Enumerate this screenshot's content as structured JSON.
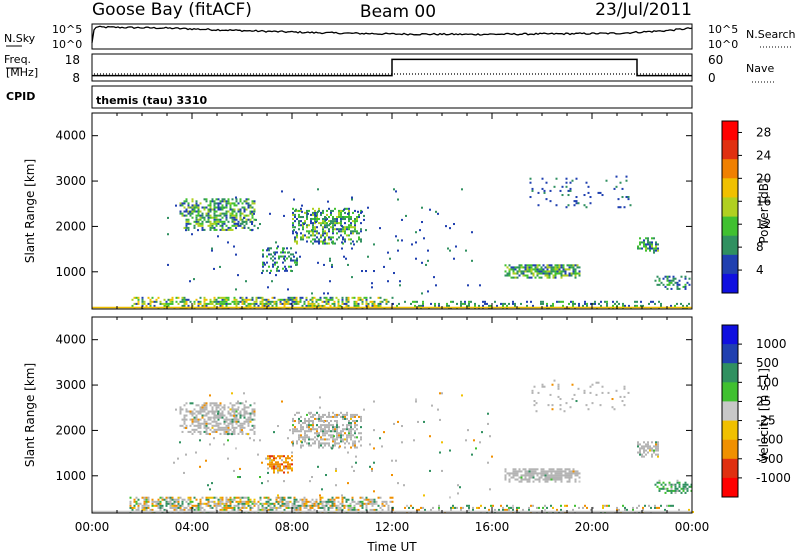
{
  "header": {
    "station": "Goose Bay (fitACF)",
    "beam": "Beam 00",
    "date": "23/Jul/2011"
  },
  "panels": {
    "nsky": {
      "label": "N.Sky",
      "tick_top": "10^5",
      "tick_bottom": "10^0",
      "right_label": "N.Search",
      "right_tick_top": "10^5",
      "right_tick_bottom": "10^0"
    },
    "freq": {
      "label_line1": "Freq.",
      "label_line2": "[MHz]",
      "tick_top": "18",
      "tick_bottom": "8",
      "right_label": "Nave",
      "right_tick_top": "60",
      "right_tick_bottom": "0"
    },
    "cpid": {
      "label": "CPID",
      "text": "themis (tau) 3310"
    }
  },
  "colors": {
    "power": [
      "#1010e0",
      "#2040b0",
      "#309060",
      "#40c030",
      "#b0d020",
      "#f0c000",
      "#f08000",
      "#e03010",
      "#ff0000"
    ],
    "velocity": [
      "#ff0000",
      "#e03010",
      "#f09000",
      "#f0c000",
      "#c8c8c8",
      "#40c030",
      "#309060",
      "#2040b0",
      "#1010e0"
    ],
    "ground_scatter": "#b4b4b4"
  },
  "chart_data": [
    {
      "type": "heatmap",
      "name": "power",
      "ylabel": "Slant Range [km]",
      "ylim": [
        180,
        4500
      ],
      "xlim": [
        0,
        24
      ],
      "yticks": [
        "1000",
        "2000",
        "3000",
        "4000"
      ],
      "colorbar": {
        "label": "Power [dB]",
        "ticks": [
          "4",
          "8",
          "12",
          "16",
          "20",
          "24",
          "28"
        ],
        "range": [
          0,
          30
        ]
      },
      "regions": [
        {
          "t0": 3.5,
          "t1": 6.5,
          "r0": 1900,
          "r1": 2600,
          "v0": 4,
          "v1": 16,
          "density": 0.45
        },
        {
          "t0": 8.0,
          "t1": 10.8,
          "r0": 1600,
          "r1": 2400,
          "v0": 4,
          "v1": 16,
          "density": 0.4
        },
        {
          "t0": 6.8,
          "t1": 8.2,
          "r0": 1000,
          "r1": 1500,
          "v0": 4,
          "v1": 12,
          "density": 0.3
        },
        {
          "t0": 1.5,
          "t1": 12.0,
          "r0": 180,
          "r1": 450,
          "v0": 4,
          "v1": 20,
          "density": 0.45
        },
        {
          "t0": 12.0,
          "t1": 24.0,
          "r0": 180,
          "r1": 350,
          "v0": 4,
          "v1": 12,
          "density": 0.2
        },
        {
          "t0": 16.5,
          "t1": 19.5,
          "r0": 850,
          "r1": 1150,
          "v0": 4,
          "v1": 16,
          "density": 0.6
        },
        {
          "t0": 21.8,
          "t1": 22.6,
          "r0": 1400,
          "r1": 1750,
          "v0": 4,
          "v1": 14,
          "density": 0.5
        },
        {
          "t0": 22.5,
          "t1": 24.0,
          "r0": 600,
          "r1": 900,
          "v0": 4,
          "v1": 12,
          "density": 0.3
        },
        {
          "t0": 17.5,
          "t1": 21.5,
          "r0": 2400,
          "r1": 3100,
          "v0": 4,
          "v1": 8,
          "density": 0.06
        },
        {
          "t0": 3.0,
          "t1": 16.0,
          "r0": 500,
          "r1": 2800,
          "v0": 4,
          "v1": 8,
          "density": 0.015
        }
      ]
    },
    {
      "type": "heatmap",
      "name": "velocity",
      "ylabel": "Slant Range [km]",
      "xlabel": "Time UT",
      "ylim": [
        180,
        4500
      ],
      "xlim": [
        0,
        24
      ],
      "yticks": [
        "1000",
        "2000",
        "3000",
        "4000"
      ],
      "xticks": [
        "00:00",
        "04:00",
        "08:00",
        "12:00",
        "16:00",
        "20:00",
        "00:00"
      ],
      "colorbar": {
        "label": "Velocity [m s-1]",
        "ticks": [
          "-1000",
          "-500",
          "-100",
          "-25",
          "25",
          "100",
          "500",
          "1000"
        ],
        "range": [
          -1200,
          1200
        ]
      },
      "regions": [
        {
          "t0": 3.5,
          "t1": 6.5,
          "r0": 1900,
          "r1": 2600,
          "ground": 0.85,
          "density": 0.45
        },
        {
          "t0": 8.0,
          "t1": 10.8,
          "r0": 1600,
          "r1": 2400,
          "ground": 0.8,
          "density": 0.4
        },
        {
          "t0": 7.0,
          "t1": 8.0,
          "r0": 1050,
          "r1": 1450,
          "ground": 0.1,
          "vmin": -600,
          "vmax": -50,
          "density": 0.5
        },
        {
          "t0": 1.5,
          "t1": 12.0,
          "r0": 180,
          "r1": 500,
          "ground": 0.4,
          "density": 0.5
        },
        {
          "t0": 12.0,
          "t1": 24.0,
          "r0": 180,
          "r1": 350,
          "ground": 0.3,
          "density": 0.2
        },
        {
          "t0": 16.5,
          "t1": 19.5,
          "r0": 850,
          "r1": 1150,
          "ground": 0.95,
          "density": 0.6
        },
        {
          "t0": 21.8,
          "t1": 22.6,
          "r0": 1400,
          "r1": 1750,
          "ground": 0.9,
          "density": 0.5
        },
        {
          "t0": 22.5,
          "t1": 24.0,
          "r0": 600,
          "r1": 900,
          "ground": 0.2,
          "vmin": 30,
          "vmax": 300,
          "density": 0.35
        },
        {
          "t0": 17.5,
          "t1": 21.5,
          "r0": 2400,
          "r1": 3100,
          "ground": 0.9,
          "density": 0.06
        },
        {
          "t0": 3.0,
          "t1": 16.0,
          "r0": 500,
          "r1": 2800,
          "ground": 0.5,
          "density": 0.015
        }
      ]
    }
  ],
  "series": {
    "nsky": {
      "name": "N.Sky",
      "profile": [
        [
          0,
          0.2
        ],
        [
          0.1,
          0.95
        ],
        [
          3,
          0.9
        ],
        [
          6,
          0.78
        ],
        [
          9,
          0.68
        ],
        [
          12,
          0.62
        ],
        [
          15,
          0.6
        ],
        [
          18,
          0.62
        ],
        [
          21,
          0.65
        ],
        [
          23,
          0.78
        ],
        [
          24,
          0.9
        ]
      ]
    },
    "freq": {
      "name": "Freq.",
      "values": [
        [
          0,
          10
        ],
        [
          12,
          10
        ],
        [
          12,
          16
        ],
        [
          21.8,
          16
        ],
        [
          21.8,
          10
        ],
        [
          24,
          10
        ]
      ]
    }
  }
}
